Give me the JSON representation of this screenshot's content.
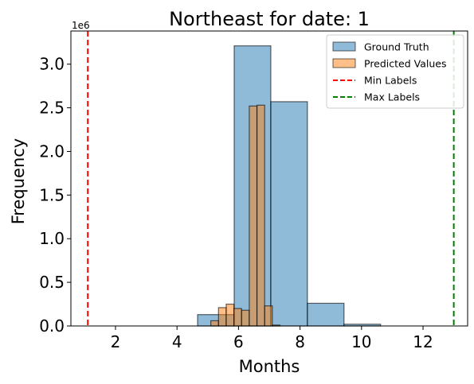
{
  "chart_data": {
    "type": "histogram",
    "title": "Northeast for date: 1",
    "xlabel": "Months",
    "ylabel": "Frequency",
    "y_offset_label": "1e6",
    "xlim": [
      0.55,
      13.45
    ],
    "ylim": [
      0,
      3.38
    ],
    "x_ticks": [
      2,
      4,
      6,
      8,
      10,
      12
    ],
    "y_ticks": [
      0.0,
      0.5,
      1.0,
      1.5,
      2.0,
      2.5,
      3.0
    ],
    "legend_position": "top-right",
    "series": [
      {
        "name": "Ground Truth",
        "color": "#1f77b4",
        "bins": [
          {
            "x0": 1.1,
            "x1": 2.29,
            "value": 0.0
          },
          {
            "x0": 2.29,
            "x1": 3.48,
            "value": 0.0
          },
          {
            "x0": 3.48,
            "x1": 4.67,
            "value": 0.0
          },
          {
            "x0": 4.67,
            "x1": 5.86,
            "value": 0.13
          },
          {
            "x0": 5.86,
            "x1": 7.05,
            "value": 3.21
          },
          {
            "x0": 7.05,
            "x1": 8.24,
            "value": 2.57
          },
          {
            "x0": 8.24,
            "x1": 9.43,
            "value": 0.26
          },
          {
            "x0": 9.43,
            "x1": 10.62,
            "value": 0.02
          },
          {
            "x0": 10.62,
            "x1": 11.81,
            "value": 0.0
          },
          {
            "x0": 11.81,
            "x1": 13.0,
            "value": 0.0
          }
        ]
      },
      {
        "name": "Predicted Values",
        "color": "#ff7f0e",
        "bins": [
          {
            "x0": 5.1,
            "x1": 5.35,
            "value": 0.06
          },
          {
            "x0": 5.35,
            "x1": 5.6,
            "value": 0.21
          },
          {
            "x0": 5.6,
            "x1": 5.85,
            "value": 0.25
          },
          {
            "x0": 5.85,
            "x1": 6.1,
            "value": 0.2
          },
          {
            "x0": 6.1,
            "x1": 6.35,
            "value": 0.18
          },
          {
            "x0": 6.35,
            "x1": 6.6,
            "value": 2.52
          },
          {
            "x0": 6.6,
            "x1": 6.85,
            "value": 2.53
          },
          {
            "x0": 6.85,
            "x1": 7.1,
            "value": 0.23
          },
          {
            "x0": 7.1,
            "x1": 7.35,
            "value": 0.01
          }
        ]
      }
    ],
    "reference_lines": [
      {
        "name": "Min Labels",
        "x": 1.1,
        "color": "#ff0000",
        "style": "dashed"
      },
      {
        "name": "Max Labels",
        "x": 13.0,
        "color": "#008000",
        "style": "dashed"
      }
    ]
  }
}
